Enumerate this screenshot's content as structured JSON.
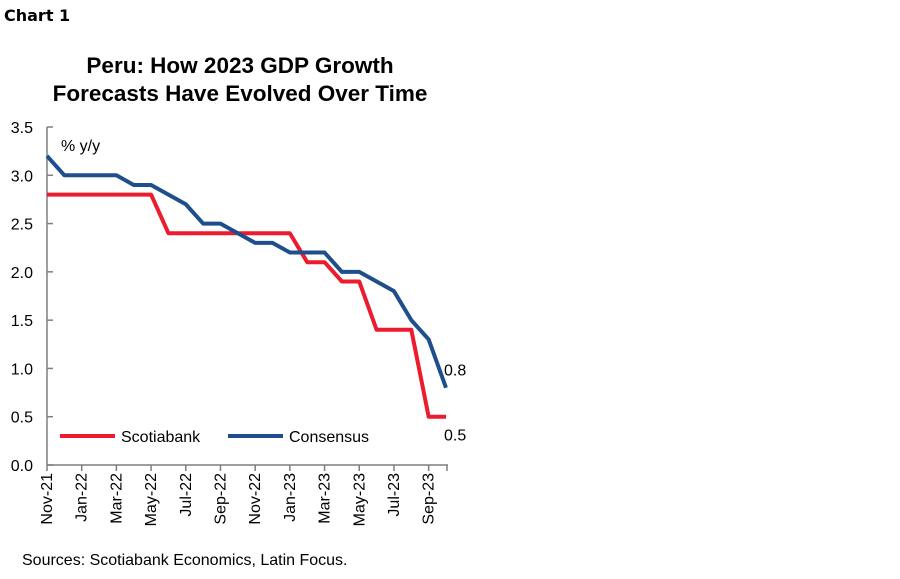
{
  "chart_label": "Chart 1",
  "source": "Sources: Scotiabank Economics, Latin Focus.",
  "chart_data": {
    "type": "line",
    "title": "Peru: How 2023 GDP Growth Forecasts Have Evolved Over Time",
    "title_lines": [
      "Peru: How 2023 GDP Growth",
      "Forecasts Have Evolved Over Time"
    ],
    "ylabel": "% y/y",
    "ylim": [
      0,
      3.5
    ],
    "yticks": [
      "0.0",
      "0.5",
      "1.0",
      "1.5",
      "2.0",
      "2.5",
      "3.0",
      "3.5"
    ],
    "x": [
      "Nov-21",
      "Dec-21",
      "Jan-22",
      "Feb-22",
      "Mar-22",
      "Apr-22",
      "May-22",
      "Jun-22",
      "Jul-22",
      "Aug-22",
      "Sep-22",
      "Oct-22",
      "Nov-22",
      "Dec-22",
      "Jan-23",
      "Feb-23",
      "Mar-23",
      "Apr-23",
      "May-23",
      "Jun-23",
      "Jul-23",
      "Aug-23",
      "Sep-23",
      "Oct-23"
    ],
    "xtick_labels": [
      "Nov-21",
      "Jan-22",
      "Mar-22",
      "May-22",
      "Jul-22",
      "Sep-22",
      "Nov-22",
      "Jan-23",
      "Mar-23",
      "May-23",
      "Jul-23",
      "Sep-23"
    ],
    "grid": false,
    "legend_position": "bottom-left",
    "series": [
      {
        "name": "Scotiabank",
        "color": "#EC1C2E",
        "values": [
          2.8,
          2.8,
          2.8,
          2.8,
          2.8,
          2.8,
          2.8,
          2.4,
          2.4,
          2.4,
          2.4,
          2.4,
          2.4,
          2.4,
          2.4,
          2.1,
          2.1,
          1.9,
          1.9,
          1.4,
          1.4,
          1.4,
          0.5,
          0.5
        ],
        "end_label": "0.5"
      },
      {
        "name": "Consensus",
        "color": "#1F4E8C",
        "values": [
          3.2,
          3.0,
          3.0,
          3.0,
          3.0,
          2.9,
          2.9,
          2.8,
          2.7,
          2.5,
          2.5,
          2.4,
          2.3,
          2.3,
          2.2,
          2.2,
          2.2,
          2.0,
          2.0,
          1.9,
          1.8,
          1.5,
          1.3,
          0.8
        ],
        "end_label": "0.8"
      }
    ]
  }
}
